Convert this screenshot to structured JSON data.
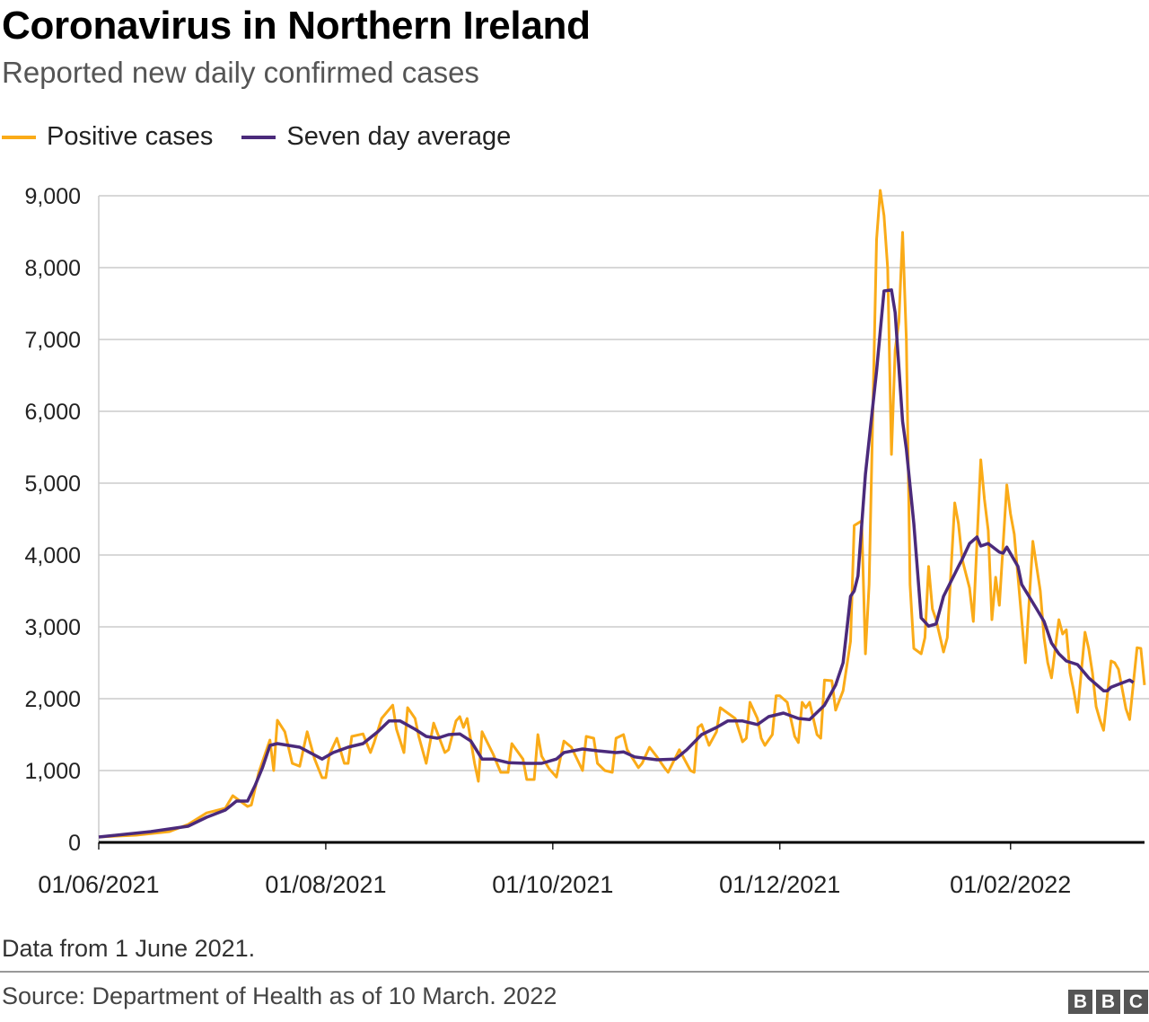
{
  "header": {
    "title": "Coronavirus in Northern Ireland",
    "subtitle": "Reported new daily confirmed cases"
  },
  "footer": {
    "note": "Data from 1 June 2021.",
    "source": "Source: Department of Health as of 10 March. 2022",
    "logo": "BBC"
  },
  "chart_data": {
    "type": "line",
    "title": "Coronavirus in Northern Ireland",
    "subtitle": "Reported new daily confirmed cases",
    "xlabel": "",
    "ylabel": "",
    "ylim": [
      0,
      9000
    ],
    "xlim": [
      "2021-06-01",
      "2022-03-09"
    ],
    "grid": true,
    "legend_position": "top-left",
    "y_ticks": [
      0,
      1000,
      2000,
      3000,
      4000,
      5000,
      6000,
      7000,
      8000,
      9000
    ],
    "y_tick_labels": [
      "0",
      "1,000",
      "2,000",
      "3,000",
      "4,000",
      "5,000",
      "6,000",
      "7,000",
      "8,000",
      "9,000"
    ],
    "x_ticks": [
      "2021-06-01",
      "2021-08-01",
      "2021-10-01",
      "2021-12-01",
      "2022-02-01"
    ],
    "x_tick_labels": [
      "01/06/2021",
      "01/08/2021",
      "01/10/2021",
      "01/12/2021",
      "01/02/2022"
    ],
    "series": [
      {
        "name": "Positive cases",
        "color": "#FAAB18",
        "points": [
          [
            "2021-06-01",
            75
          ],
          [
            "2021-06-11",
            100
          ],
          [
            "2021-06-20",
            150
          ],
          [
            "2021-06-25",
            250
          ],
          [
            "2021-06-30",
            410
          ],
          [
            "2021-07-05",
            475
          ],
          [
            "2021-07-07",
            650
          ],
          [
            "2021-07-11",
            500
          ],
          [
            "2021-07-12",
            520
          ],
          [
            "2021-07-14",
            975
          ],
          [
            "2021-07-17",
            1425
          ],
          [
            "2021-07-18",
            1000
          ],
          [
            "2021-07-19",
            1700
          ],
          [
            "2021-07-21",
            1540
          ],
          [
            "2021-07-23",
            1100
          ],
          [
            "2021-07-25",
            1060
          ],
          [
            "2021-07-27",
            1540
          ],
          [
            "2021-07-29",
            1160
          ],
          [
            "2021-07-31",
            900
          ],
          [
            "2021-08-01",
            900
          ],
          [
            "2021-08-02",
            1225
          ],
          [
            "2021-08-04",
            1450
          ],
          [
            "2021-08-06",
            1100
          ],
          [
            "2021-08-07",
            1100
          ],
          [
            "2021-08-08",
            1475
          ],
          [
            "2021-08-11",
            1510
          ],
          [
            "2021-08-13",
            1250
          ],
          [
            "2021-08-14",
            1390
          ],
          [
            "2021-08-16",
            1725
          ],
          [
            "2021-08-19",
            1910
          ],
          [
            "2021-08-20",
            1575
          ],
          [
            "2021-08-22",
            1250
          ],
          [
            "2021-08-23",
            1875
          ],
          [
            "2021-08-25",
            1725
          ],
          [
            "2021-08-26",
            1475
          ],
          [
            "2021-08-28",
            1100
          ],
          [
            "2021-08-30",
            1660
          ],
          [
            "2021-09-02",
            1250
          ],
          [
            "2021-09-03",
            1290
          ],
          [
            "2021-09-05",
            1690
          ],
          [
            "2021-09-06",
            1750
          ],
          [
            "2021-09-07",
            1600
          ],
          [
            "2021-09-08",
            1725
          ],
          [
            "2021-09-10",
            1100
          ],
          [
            "2021-09-11",
            850
          ],
          [
            "2021-09-12",
            1540
          ],
          [
            "2021-09-15",
            1225
          ],
          [
            "2021-09-17",
            975
          ],
          [
            "2021-09-19",
            975
          ],
          [
            "2021-09-20",
            1375
          ],
          [
            "2021-09-23",
            1160
          ],
          [
            "2021-09-24",
            875
          ],
          [
            "2021-09-26",
            875
          ],
          [
            "2021-09-27",
            1500
          ],
          [
            "2021-09-28",
            1200
          ],
          [
            "2021-09-30",
            1025
          ],
          [
            "2021-10-02",
            910
          ],
          [
            "2021-10-04",
            1410
          ],
          [
            "2021-10-06",
            1325
          ],
          [
            "2021-10-09",
            1000
          ],
          [
            "2021-10-10",
            1475
          ],
          [
            "2021-10-12",
            1450
          ],
          [
            "2021-10-13",
            1100
          ],
          [
            "2021-10-15",
            1000
          ],
          [
            "2021-10-17",
            975
          ],
          [
            "2021-10-18",
            1450
          ],
          [
            "2021-10-20",
            1500
          ],
          [
            "2021-10-21",
            1290
          ],
          [
            "2021-10-24",
            1040
          ],
          [
            "2021-10-25",
            1100
          ],
          [
            "2021-10-27",
            1325
          ],
          [
            "2021-10-29",
            1190
          ],
          [
            "2021-10-31",
            1040
          ],
          [
            "2021-11-01",
            975
          ],
          [
            "2021-11-04",
            1290
          ],
          [
            "2021-11-07",
            1000
          ],
          [
            "2021-11-08",
            975
          ],
          [
            "2021-11-09",
            1600
          ],
          [
            "2021-11-10",
            1640
          ],
          [
            "2021-11-12",
            1350
          ],
          [
            "2021-11-14",
            1540
          ],
          [
            "2021-11-15",
            1875
          ],
          [
            "2021-11-19",
            1725
          ],
          [
            "2021-11-21",
            1400
          ],
          [
            "2021-11-22",
            1450
          ],
          [
            "2021-11-23",
            1950
          ],
          [
            "2021-11-25",
            1725
          ],
          [
            "2021-11-26",
            1450
          ],
          [
            "2021-11-27",
            1350
          ],
          [
            "2021-11-29",
            1500
          ],
          [
            "2021-11-30",
            2040
          ],
          [
            "2021-12-01",
            2040
          ],
          [
            "2021-12-03",
            1950
          ],
          [
            "2021-12-05",
            1475
          ],
          [
            "2021-12-06",
            1390
          ],
          [
            "2021-12-07",
            1950
          ],
          [
            "2021-12-08",
            1875
          ],
          [
            "2021-12-09",
            1950
          ],
          [
            "2021-12-11",
            1500
          ],
          [
            "2021-12-12",
            1450
          ],
          [
            "2021-12-13",
            2260
          ],
          [
            "2021-12-15",
            2250
          ],
          [
            "2021-12-16",
            1840
          ],
          [
            "2021-12-18",
            2110
          ],
          [
            "2021-12-20",
            2800
          ],
          [
            "2021-12-21",
            4410
          ],
          [
            "2021-12-23",
            4475
          ],
          [
            "2021-12-24",
            2625
          ],
          [
            "2021-12-25",
            3590
          ],
          [
            "2021-12-27",
            8390
          ],
          [
            "2021-12-28",
            9075
          ],
          [
            "2021-12-29",
            8725
          ],
          [
            "2021-12-30",
            7990
          ],
          [
            "2021-12-31",
            5400
          ],
          [
            "2022-01-01",
            6850
          ],
          [
            "2022-01-02",
            7250
          ],
          [
            "2022-01-03",
            8490
          ],
          [
            "2022-01-04",
            7000
          ],
          [
            "2022-01-05",
            3590
          ],
          [
            "2022-01-06",
            2700
          ],
          [
            "2022-01-08",
            2625
          ],
          [
            "2022-01-09",
            2850
          ],
          [
            "2022-01-10",
            3840
          ],
          [
            "2022-01-11",
            3250
          ],
          [
            "2022-01-12",
            3100
          ],
          [
            "2022-01-14",
            2650
          ],
          [
            "2022-01-15",
            2850
          ],
          [
            "2022-01-17",
            4725
          ],
          [
            "2022-01-18",
            4440
          ],
          [
            "2022-01-19",
            3940
          ],
          [
            "2022-01-21",
            3540
          ],
          [
            "2022-01-22",
            3075
          ],
          [
            "2022-01-24",
            5325
          ],
          [
            "2022-01-25",
            4775
          ],
          [
            "2022-01-26",
            4340
          ],
          [
            "2022-01-27",
            3100
          ],
          [
            "2022-01-28",
            3690
          ],
          [
            "2022-01-29",
            3300
          ],
          [
            "2022-01-31",
            4975
          ],
          [
            "2022-02-01",
            4575
          ],
          [
            "2022-02-02",
            4290
          ],
          [
            "2022-02-04",
            3100
          ],
          [
            "2022-02-05",
            2500
          ],
          [
            "2022-02-07",
            4190
          ],
          [
            "2022-02-08",
            3840
          ],
          [
            "2022-02-09",
            3500
          ],
          [
            "2022-02-10",
            2850
          ],
          [
            "2022-02-11",
            2500
          ],
          [
            "2022-02-12",
            2290
          ],
          [
            "2022-02-14",
            3100
          ],
          [
            "2022-02-15",
            2900
          ],
          [
            "2022-02-16",
            2960
          ],
          [
            "2022-02-17",
            2360
          ],
          [
            "2022-02-18",
            2110
          ],
          [
            "2022-02-19",
            1810
          ],
          [
            "2022-02-21",
            2925
          ],
          [
            "2022-02-22",
            2700
          ],
          [
            "2022-02-23",
            2360
          ],
          [
            "2022-02-24",
            1890
          ],
          [
            "2022-02-25",
            1710
          ],
          [
            "2022-02-26",
            1560
          ],
          [
            "2022-02-28",
            2525
          ],
          [
            "2022-03-01",
            2500
          ],
          [
            "2022-03-02",
            2410
          ],
          [
            "2022-03-04",
            1860
          ],
          [
            "2022-03-05",
            1710
          ],
          [
            "2022-03-07",
            2710
          ],
          [
            "2022-03-08",
            2700
          ],
          [
            "2022-03-09",
            2190
          ]
        ]
      },
      {
        "name": "Seven day average",
        "color": "#4B2A7B",
        "points": [
          [
            "2021-06-01",
            75
          ],
          [
            "2021-06-15",
            150
          ],
          [
            "2021-06-25",
            225
          ],
          [
            "2021-06-30",
            350
          ],
          [
            "2021-07-05",
            450
          ],
          [
            "2021-07-08",
            575
          ],
          [
            "2021-07-11",
            575
          ],
          [
            "2021-07-13",
            790
          ],
          [
            "2021-07-15",
            1040
          ],
          [
            "2021-07-17",
            1350
          ],
          [
            "2021-07-19",
            1375
          ],
          [
            "2021-07-22",
            1350
          ],
          [
            "2021-07-25",
            1325
          ],
          [
            "2021-07-31",
            1160
          ],
          [
            "2021-08-03",
            1250
          ],
          [
            "2021-08-07",
            1325
          ],
          [
            "2021-08-11",
            1375
          ],
          [
            "2021-08-15",
            1540
          ],
          [
            "2021-08-18",
            1690
          ],
          [
            "2021-08-21",
            1690
          ],
          [
            "2021-08-25",
            1575
          ],
          [
            "2021-08-28",
            1475
          ],
          [
            "2021-08-31",
            1450
          ],
          [
            "2021-09-03",
            1500
          ],
          [
            "2021-09-06",
            1510
          ],
          [
            "2021-09-09",
            1410
          ],
          [
            "2021-09-12",
            1160
          ],
          [
            "2021-09-15",
            1160
          ],
          [
            "2021-09-19",
            1110
          ],
          [
            "2021-09-24",
            1100
          ],
          [
            "2021-09-28",
            1100
          ],
          [
            "2021-10-02",
            1160
          ],
          [
            "2021-10-04",
            1250
          ],
          [
            "2021-10-09",
            1300
          ],
          [
            "2021-10-13",
            1275
          ],
          [
            "2021-10-18",
            1250
          ],
          [
            "2021-10-20",
            1260
          ],
          [
            "2021-10-23",
            1190
          ],
          [
            "2021-10-29",
            1150
          ],
          [
            "2021-11-03",
            1160
          ],
          [
            "2021-11-06",
            1290
          ],
          [
            "2021-11-10",
            1500
          ],
          [
            "2021-11-14",
            1600
          ],
          [
            "2021-11-17",
            1690
          ],
          [
            "2021-11-21",
            1690
          ],
          [
            "2021-11-25",
            1640
          ],
          [
            "2021-11-28",
            1750
          ],
          [
            "2021-12-02",
            1800
          ],
          [
            "2021-12-06",
            1725
          ],
          [
            "2021-12-09",
            1710
          ],
          [
            "2021-12-13",
            1910
          ],
          [
            "2021-12-16",
            2190
          ],
          [
            "2021-12-18",
            2500
          ],
          [
            "2021-12-19",
            2950
          ],
          [
            "2021-12-20",
            3425
          ],
          [
            "2021-12-21",
            3500
          ],
          [
            "2021-12-22",
            3710
          ],
          [
            "2021-12-24",
            5125
          ],
          [
            "2021-12-27",
            6560
          ],
          [
            "2021-12-29",
            7675
          ],
          [
            "2021-12-31",
            7690
          ],
          [
            "2022-01-01",
            7375
          ],
          [
            "2022-01-03",
            5860
          ],
          [
            "2022-01-04",
            5475
          ],
          [
            "2022-01-06",
            4440
          ],
          [
            "2022-01-08",
            3125
          ],
          [
            "2022-01-10",
            3010
          ],
          [
            "2022-01-12",
            3040
          ],
          [
            "2022-01-14",
            3425
          ],
          [
            "2022-01-18",
            3840
          ],
          [
            "2022-01-19",
            3940
          ],
          [
            "2022-01-21",
            4160
          ],
          [
            "2022-01-23",
            4250
          ],
          [
            "2022-01-24",
            4125
          ],
          [
            "2022-01-26",
            4160
          ],
          [
            "2022-01-29",
            4040
          ],
          [
            "2022-01-30",
            4025
          ],
          [
            "2022-01-31",
            4110
          ],
          [
            "2022-02-03",
            3840
          ],
          [
            "2022-02-04",
            3590
          ],
          [
            "2022-02-08",
            3250
          ],
          [
            "2022-02-10",
            3075
          ],
          [
            "2022-02-12",
            2775
          ],
          [
            "2022-02-14",
            2625
          ],
          [
            "2022-02-16",
            2525
          ],
          [
            "2022-02-19",
            2475
          ],
          [
            "2022-02-22",
            2290
          ],
          [
            "2022-02-26",
            2110
          ],
          [
            "2022-02-27",
            2110
          ],
          [
            "2022-02-28",
            2160
          ],
          [
            "2022-03-05",
            2260
          ],
          [
            "2022-03-06",
            2225
          ]
        ]
      }
    ]
  }
}
